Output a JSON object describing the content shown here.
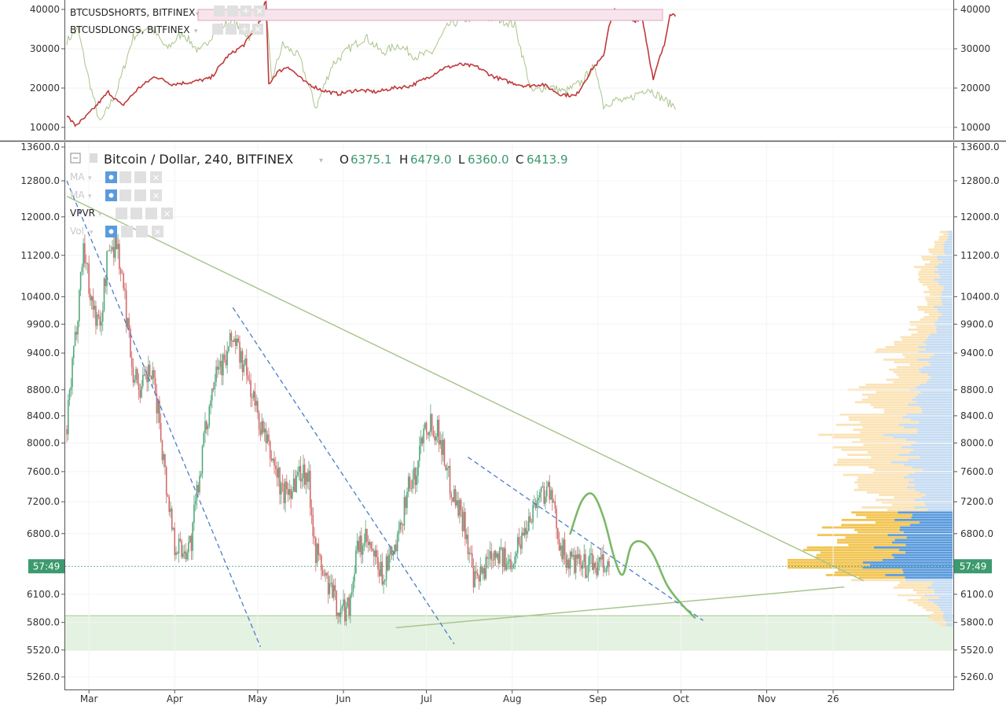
{
  "chart_data": [
    {
      "type": "line",
      "panel": "top",
      "y_ticks": [
        10000,
        20000,
        30000,
        40000
      ],
      "y_tick_labels": [
        "10000",
        "20000",
        "30000",
        "40000"
      ],
      "ylim": [
        7500,
        42500
      ],
      "series": [
        {
          "name": "BTCUSDSHORTS, BITFINEX",
          "color": "#c0393b",
          "t": [
            0,
            3,
            6,
            10,
            15,
            20,
            26,
            32,
            38,
            45,
            52,
            58,
            64,
            70,
            72,
            73,
            76,
            80,
            86,
            92,
            98,
            105,
            112,
            118,
            124,
            130,
            136,
            142,
            148,
            154,
            160,
            166,
            172,
            178,
            184,
            190,
            194,
            196,
            198,
            200,
            202,
            205,
            208,
            210,
            212,
            214,
            216,
            218,
            220
          ],
          "values": [
            13000,
            10500,
            12000,
            15000,
            19000,
            15500,
            20000,
            23000,
            21000,
            21500,
            22500,
            28000,
            31000,
            37000,
            43000,
            21000,
            24000,
            25500,
            21500,
            19500,
            18500,
            19500,
            19000,
            20000,
            20500,
            22500,
            25000,
            26000,
            25500,
            23000,
            21500,
            20500,
            21000,
            18500,
            18000,
            25000,
            28000,
            36000,
            40000,
            37500,
            38500,
            37000,
            38000,
            30000,
            22000,
            27000,
            31000,
            39000,
            38500
          ]
        },
        {
          "name": "BTCUSDLONGS, BITFINEX",
          "color": "#a8c48a",
          "t": [
            0,
            4,
            8,
            12,
            18,
            24,
            30,
            36,
            42,
            48,
            54,
            60,
            66,
            72,
            74,
            78,
            84,
            90,
            96,
            102,
            108,
            114,
            120,
            126,
            132,
            138,
            144,
            150,
            156,
            162,
            168,
            174,
            180,
            186,
            190,
            192,
            194,
            198,
            202,
            206,
            210,
            214,
            218,
            220
          ],
          "values": [
            32000,
            35000,
            22000,
            11000,
            19000,
            33000,
            36000,
            30000,
            34000,
            29000,
            35000,
            37000,
            33000,
            40000,
            22000,
            31000,
            28000,
            15000,
            26000,
            30000,
            33000,
            29000,
            31000,
            28000,
            29000,
            36000,
            37500,
            38000,
            37500,
            36000,
            19000,
            20500,
            19000,
            21500,
            25000,
            23000,
            15500,
            17000,
            16500,
            18500,
            20000,
            18000,
            16000,
            15500
          ]
        }
      ]
    },
    {
      "type": "candlestick",
      "panel": "main",
      "title": "Bitcoin / Dollar, 240, BITFINEX",
      "ohlc": {
        "O": "6375.1",
        "H": "6479.0",
        "L": "6360.0",
        "C": "6413.9"
      },
      "y_ticks": [
        5260,
        5520,
        5800,
        6100,
        6800,
        7200,
        7600,
        8000,
        8400,
        8800,
        9400,
        9900,
        10400,
        11200,
        12000,
        12800,
        13600
      ],
      "y_tick_labels": [
        "5260.0",
        "5520.0",
        "5800.0",
        "6100.0",
        "6800.0",
        "7200.0",
        "7600.0",
        "8000.0",
        "8400.0",
        "8800.0",
        "9400.0",
        "9900.0",
        "10400.0",
        "11200.0",
        "12000.0",
        "12800.0",
        "13600.0"
      ],
      "log_scale": true,
      "x_tick_labels": [
        "Mar",
        "Apr",
        "May",
        "Jun",
        "Jul",
        "Aug",
        "Sep",
        "Oct",
        "Nov",
        "26"
      ],
      "current_price_label": "57:49",
      "current_price": 6414,
      "close_path": {
        "t": [
          0,
          3,
          6,
          9,
          12,
          15,
          18,
          21,
          24,
          27,
          30,
          33,
          36,
          39,
          42,
          45,
          48,
          51,
          54,
          57,
          60,
          63,
          66,
          69,
          72,
          75,
          78,
          81,
          84,
          87,
          90,
          93,
          96,
          99,
          102,
          105,
          108,
          111,
          114,
          117,
          120,
          123,
          126,
          129,
          132,
          135,
          138,
          141,
          144,
          147,
          150,
          153,
          156,
          159,
          162,
          165,
          168,
          171,
          174,
          177,
          180,
          183,
          186,
          189,
          192,
          194,
          195,
          196
        ],
        "values": [
          8200,
          9600,
          11400,
          10300,
          9800,
          11300,
          11500,
          10300,
          9100,
          8800,
          9100,
          8500,
          7400,
          6700,
          6600,
          6700,
          7600,
          8400,
          9300,
          9200,
          9700,
          9300,
          8900,
          8400,
          8000,
          7700,
          7300,
          7400,
          7600,
          7600,
          6600,
          6300,
          6100,
          5900,
          6000,
          6600,
          6700,
          6500,
          6300,
          6500,
          6700,
          7400,
          7500,
          8300,
          8300,
          8100,
          7500,
          7200,
          6900,
          6200,
          6300,
          6600,
          6600,
          6400,
          6600,
          6800,
          7100,
          7300,
          7400,
          6900,
          6500,
          6450,
          6400,
          6450,
          6400,
          6410,
          6413,
          6414
        ]
      },
      "trendlines": [
        {
          "name": "descending-resistance",
          "color": "#a9c58d",
          "style": "solid",
          "t1": 0,
          "p1": 12450,
          "t2": 288,
          "p2": 6250
        },
        {
          "name": "ascending-support",
          "color": "#a9c58d",
          "style": "solid",
          "t1": 119,
          "p1": 5745,
          "t2": 281,
          "p2": 6180
        },
        {
          "name": "channel-1",
          "color": "#4a7dc9",
          "style": "dashed",
          "t1": 0,
          "p1": 12800,
          "t2": 70,
          "p2": 5550
        },
        {
          "name": "channel-2",
          "color": "#4a7dc9",
          "style": "dashed",
          "t1": 60,
          "p1": 10200,
          "t2": 140,
          "p2": 5580
        },
        {
          "name": "channel-3",
          "color": "#4a7dc9",
          "style": "dashed",
          "t1": 145,
          "p1": 7800,
          "t2": 230,
          "p2": 5820
        }
      ],
      "projection": {
        "color": "#7cb869",
        "t": [
          182,
          186,
          190,
          194,
          198,
          201,
          204,
          208,
          212,
          217,
          222,
          227
        ],
        "values": [
          6800,
          7200,
          7300,
          7000,
          6500,
          6320,
          6650,
          6700,
          6550,
          6200,
          6000,
          5850
        ]
      },
      "support_zone": {
        "color": "#d8ecd6",
        "low": 5520,
        "high": 5870
      },
      "indicators": [
        {
          "label": "MA",
          "faded": true
        },
        {
          "label": "MA",
          "faded": true
        },
        {
          "label": "VPVR",
          "faded": false
        },
        {
          "label": "Vol",
          "faded": true
        }
      ],
      "volume_profile": {
        "up_color": "#fbe3b6",
        "down_color": "#c6dcf2",
        "poc_up_color": "#f2c451",
        "poc_down_color": "#5a9bdc",
        "price": [
          5800,
          6000,
          6200,
          6300,
          6400,
          6500,
          6600,
          6700,
          6800,
          7000,
          7200,
          7400,
          7600,
          7800,
          8000,
          8200,
          8400,
          8600,
          8800,
          9000,
          9200,
          9400,
          9600,
          9800,
          10000,
          10400,
          10800,
          11200,
          11600
        ],
        "volume": [
          20,
          45,
          75,
          150,
          210,
          200,
          160,
          140,
          150,
          110,
          90,
          110,
          120,
          140,
          150,
          130,
          120,
          100,
          110,
          80,
          70,
          85,
          55,
          50,
          40,
          35,
          45,
          30,
          15
        ]
      }
    }
  ]
}
